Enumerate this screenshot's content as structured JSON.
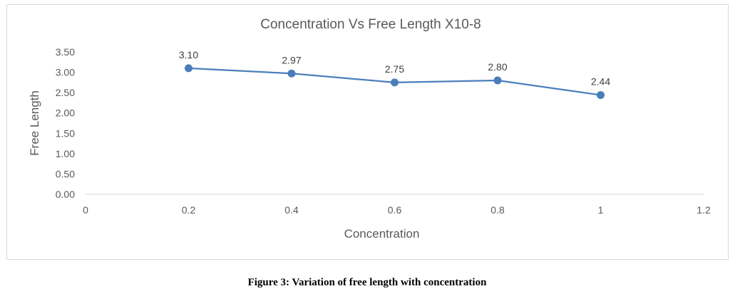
{
  "chart_data": {
    "type": "line",
    "title": "Concentration  Vs Free  Length X10-8",
    "xlabel": "Concentration",
    "ylabel": "Free Length",
    "x": [
      0.2,
      0.4,
      0.6,
      0.8,
      1
    ],
    "series": [
      {
        "values": [
          3.1,
          2.97,
          2.75,
          2.8,
          2.44
        ],
        "data_labels": [
          "3.10",
          "2.97",
          "2.75",
          "2.80",
          "2.44"
        ],
        "color": "#4a7ebb"
      }
    ],
    "xlim": [
      0,
      1.2
    ],
    "ylim": [
      0,
      3.5
    ],
    "x_ticks": [
      "0",
      "0.2",
      "0.4",
      "0.6",
      "0.8",
      "1",
      "1.2"
    ],
    "y_ticks": [
      "0.00",
      "0.50",
      "1.00",
      "1.50",
      "2.00",
      "2.50",
      "3.00",
      "3.50"
    ],
    "grid": false,
    "legend": "none"
  },
  "caption": "Figure 3: Variation of free length with concentration",
  "colors": {
    "axis": "#d9d9d9",
    "text": "#595959",
    "series": "#4a7ebb"
  }
}
